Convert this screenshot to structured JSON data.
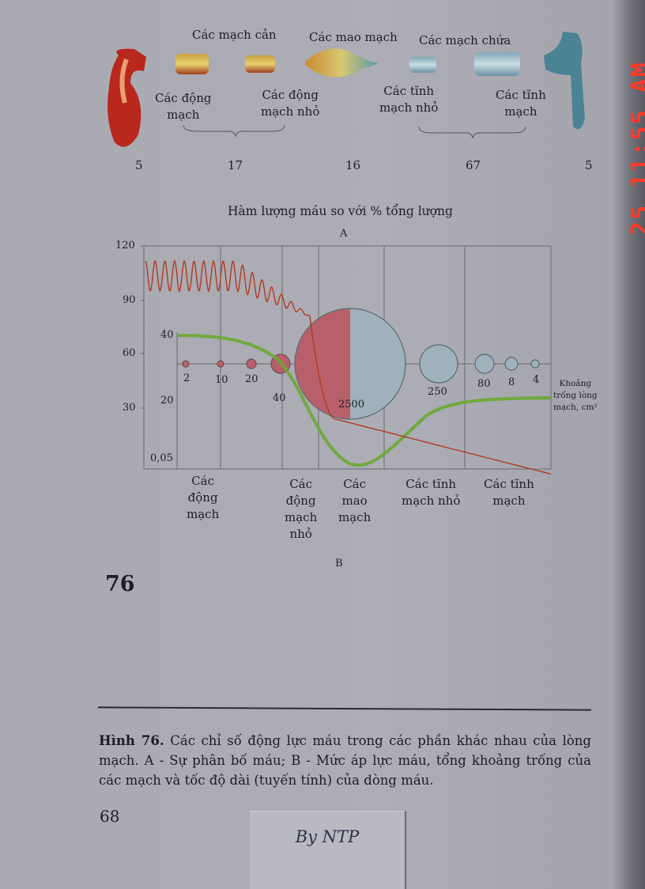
{
  "top_diagram": {
    "group_labels": {
      "resistance": "Các mạch cản",
      "capillaries": "Các mao mạch",
      "capacitance": "Các mạch chứa"
    },
    "vessel_labels": {
      "arteries": "Các động\nmạch",
      "arterioles": "Các động\nmạch nhỏ",
      "venules": "Các tĩnh\nmạch nhỏ",
      "veins": "Các tĩnh\nmạch"
    },
    "percentages": [
      "5",
      "17",
      "16",
      "67",
      "5"
    ]
  },
  "chart": {
    "title": "Hàm lượng máu so với % tổng lượng",
    "label_a": "A",
    "label_b": "B",
    "pressure_ticks": [
      "120",
      "90",
      "60",
      "30"
    ],
    "velocity_ticks": [
      "40",
      "20",
      "0,05"
    ],
    "cross_section_values": [
      "2",
      "10",
      "20",
      "40",
      "2500",
      "250",
      "80",
      "8",
      "4"
    ],
    "cross_section_label": "Khoảng\ntrống lòng\nmạch, cm²",
    "categories": [
      "Các\nđộng\nmạch",
      "Các\nđộng\nmạch\nnhỏ",
      "Các\nmao\nmạch",
      "Các tĩnh\nmạch nhỏ",
      "Các tĩnh\nmạch"
    ],
    "colors": {
      "pressure": "#b03a22",
      "velocity": "#6aa832",
      "arterial": "#b8606a",
      "venous": "#9fb2bc"
    }
  },
  "figure_number": "76",
  "caption": {
    "label": "Hình 76.",
    "text": "Các chỉ số động lực máu trong các phần khác nhau của lòng mạch. A - Sự phân bố máu; B - Mức áp lực máu, tổng khoảng trống của các mạch và tốc độ dài (tuyến tính) của dòng máu."
  },
  "page_number": "68",
  "note_label": "By NTP",
  "timestamp": "25 11:55 AM"
}
